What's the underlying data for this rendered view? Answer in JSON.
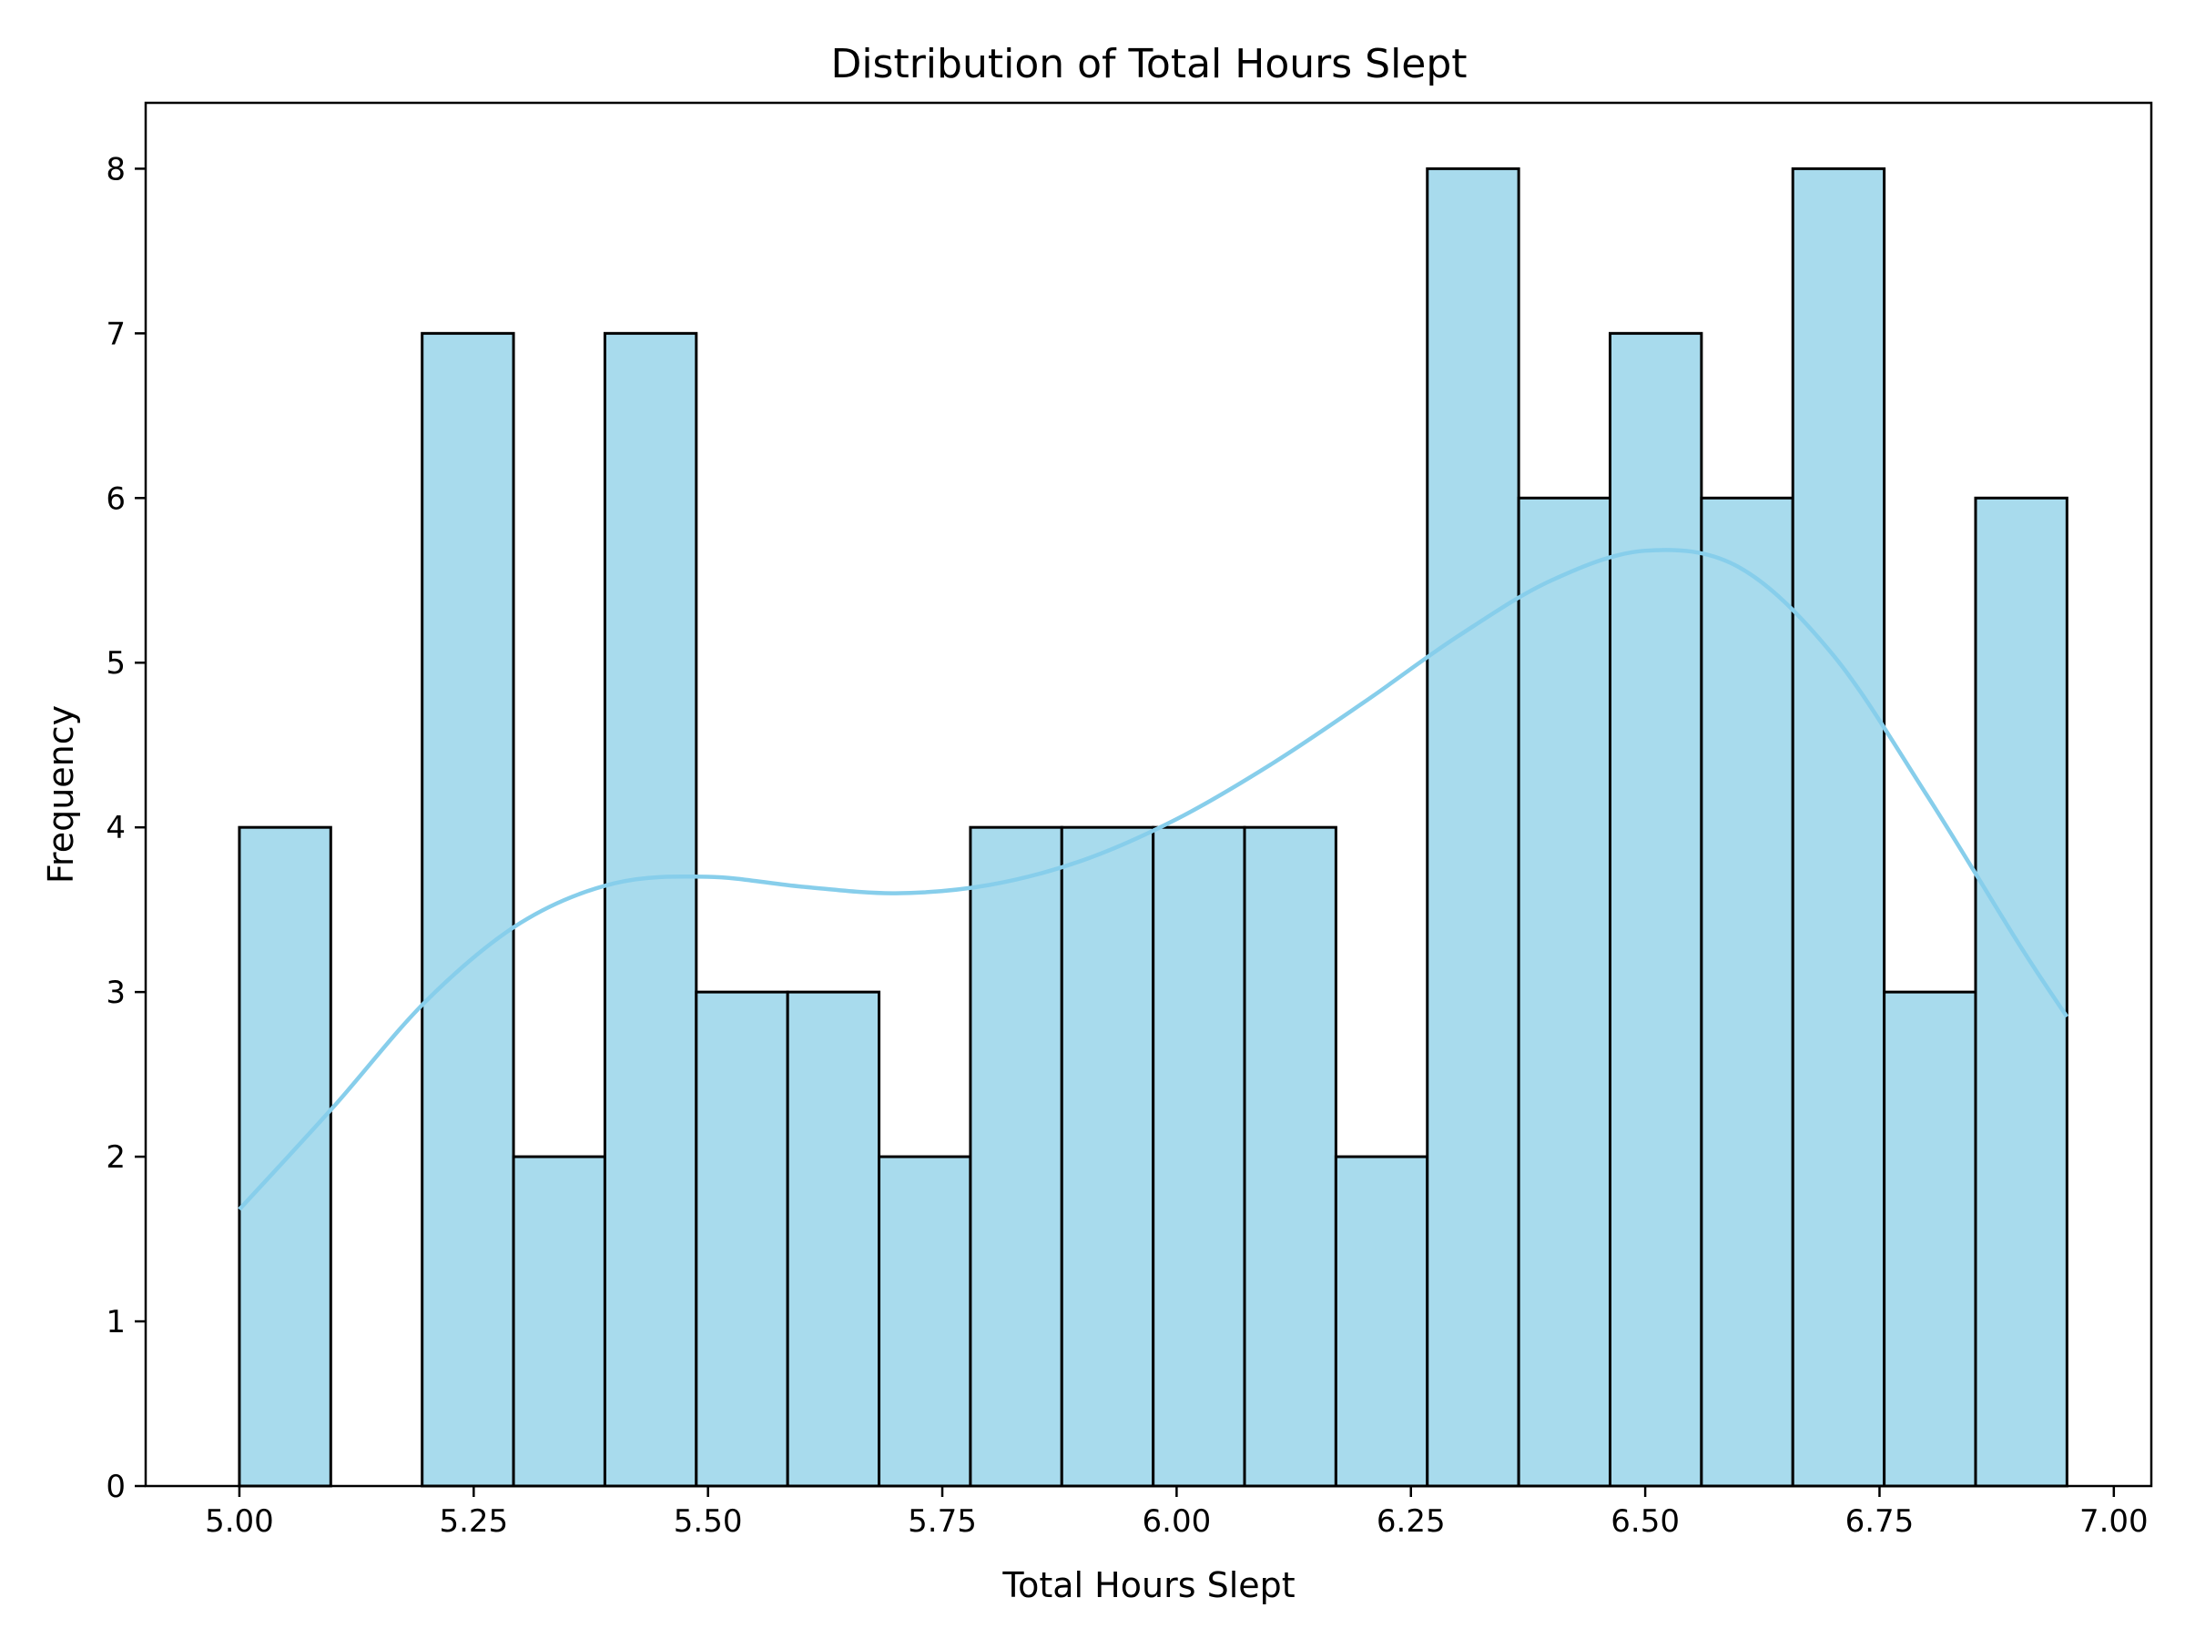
{
  "chart_data": {
    "type": "bar",
    "title": "Distribution of Total Hours Slept",
    "xlabel": "Total Hours Slept",
    "ylabel": "Frequency",
    "xlim": [
      4.9,
      7.04
    ],
    "ylim": [
      0,
      8.4
    ],
    "bin_edges": [
      5.0,
      5.0975,
      5.195,
      5.2925,
      5.39,
      5.4875,
      5.585,
      5.6825,
      5.78,
      5.8775,
      5.975,
      6.0725,
      6.17,
      6.2675,
      6.365,
      6.4625,
      6.56,
      6.6575,
      6.755,
      6.8525,
      6.95
    ],
    "values": [
      4,
      0,
      7,
      2,
      7,
      3,
      3,
      2,
      4,
      4,
      4,
      4,
      2,
      8,
      6,
      7,
      6,
      8,
      3,
      6
    ],
    "x_ticks": [
      "5.00",
      "5.25",
      "5.50",
      "5.75",
      "6.00",
      "6.25",
      "6.50",
      "6.75",
      "7.00"
    ],
    "y_ticks": [
      "0",
      "1",
      "2",
      "3",
      "4",
      "5",
      "6",
      "7",
      "8"
    ],
    "kde": {
      "x": [
        5.0,
        5.1,
        5.2,
        5.3,
        5.4,
        5.5,
        5.6,
        5.7,
        5.8,
        5.9,
        6.0,
        6.1,
        6.2,
        6.3,
        6.4,
        6.5,
        6.6,
        6.7,
        6.8,
        6.9,
        6.95
      ],
      "y": [
        1.68,
        2.3,
        2.95,
        3.42,
        3.66,
        3.7,
        3.64,
        3.6,
        3.65,
        3.8,
        4.05,
        4.38,
        4.76,
        5.16,
        5.5,
        5.68,
        5.58,
        5.05,
        4.2,
        3.28,
        2.85
      ]
    },
    "grid": false,
    "legend": "none",
    "colors": {
      "bar_fill": "#a8dbed",
      "bar_edge": "#000000",
      "kde_line": "#87ceeb"
    }
  }
}
